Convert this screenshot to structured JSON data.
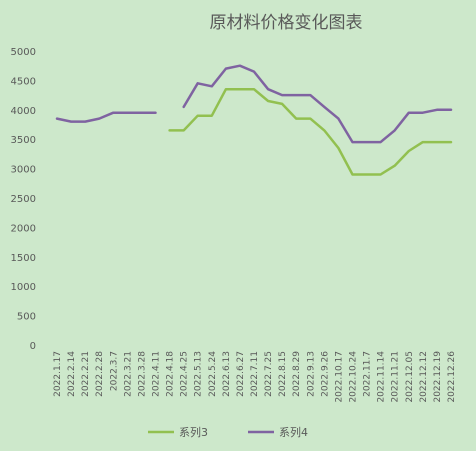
{
  "chart_data": {
    "type": "line",
    "title": "原材料价格变化图表",
    "xlabel": "",
    "ylabel": "",
    "ylim": [
      0,
      5000
    ],
    "yticks": [
      0,
      500,
      1000,
      1500,
      2000,
      2500,
      3000,
      3500,
      4000,
      4500,
      5000
    ],
    "grid": false,
    "legend_position": "bottom",
    "categories": [
      "2022.1.17",
      "2022.2.14",
      "2022.2.21",
      "2022.2.28",
      "2022.3.7",
      "2022.3.21",
      "2022.3.28",
      "2022.4.11",
      "2022.4.18",
      "2022.4.25",
      "2022.5.13",
      "2022.5.24",
      "2022.6.13",
      "2022.6.27",
      "2022.7.11",
      "2022.7.25",
      "2022.8.15",
      "2022.8.29",
      "2022.9.13",
      "2022.9.26",
      "2022.10.17",
      "2022.10.24",
      "2022.11.7",
      "2022.11.14",
      "2022.11.21",
      "2022.12.05",
      "2022.12.12",
      "2022.12.19",
      "2022.12.26"
    ],
    "series": [
      {
        "name": "系列3",
        "color": "#92c050",
        "values": [
          null,
          null,
          null,
          null,
          null,
          null,
          null,
          null,
          3650,
          3650,
          3900,
          3900,
          4350,
          4350,
          4350,
          4150,
          4100,
          3850,
          3850,
          3650,
          3350,
          2900,
          2900,
          2900,
          3050,
          3300,
          3450,
          3450,
          3450
        ]
      },
      {
        "name": "系列4",
        "color": "#7f63a1",
        "values": [
          3850,
          3800,
          3800,
          3850,
          3950,
          3950,
          3950,
          3950,
          null,
          4050,
          4450,
          4400,
          4700,
          4750,
          4650,
          4350,
          4250,
          4250,
          4250,
          4050,
          3850,
          3450,
          3450,
          3450,
          3650,
          3950,
          3950,
          4000,
          4000
        ]
      }
    ]
  }
}
